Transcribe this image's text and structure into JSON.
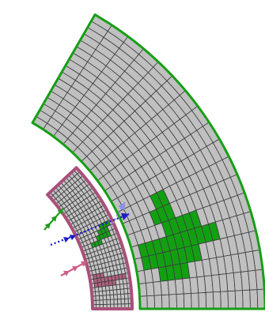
{
  "colors": {
    "background": "#ffffff",
    "outer_cell_fill": "#c0c0c0",
    "inner_cell_fill": "#c4c4c4",
    "grid_line": "#3c3c3c",
    "outer_border": "#169e16",
    "inner_border": "#a8507a",
    "highlight_green": "#12a012",
    "highlight_pink": "#b0607e",
    "arrow_green": "#1f9c1f",
    "arrow_blue": "#1a1acc",
    "arrow_lightblue": "#8f8fe8",
    "arrow_pink": "#cc5f8c"
  },
  "outer_region": {
    "label": "",
    "rings": 17,
    "sectors": 18,
    "highlighted_cells": [
      [
        5,
        7
      ],
      [
        6,
        7
      ],
      [
        4,
        6
      ],
      [
        5,
        6
      ],
      [
        6,
        6
      ],
      [
        5,
        5
      ],
      [
        6,
        5
      ],
      [
        7,
        5
      ],
      [
        8,
        5
      ],
      [
        9,
        5
      ],
      [
        1,
        4
      ],
      [
        2,
        4
      ],
      [
        3,
        4
      ],
      [
        4,
        4
      ],
      [
        5,
        4
      ],
      [
        6,
        4
      ],
      [
        7,
        4
      ],
      [
        8,
        4
      ],
      [
        9,
        4
      ],
      [
        10,
        4
      ],
      [
        11,
        4
      ],
      [
        1,
        3
      ],
      [
        2,
        3
      ],
      [
        3,
        3
      ],
      [
        4,
        3
      ],
      [
        5,
        3
      ],
      [
        6,
        3
      ],
      [
        7,
        3
      ],
      [
        8,
        3
      ],
      [
        3,
        2
      ],
      [
        4,
        2
      ],
      [
        5,
        2
      ],
      [
        6,
        2
      ]
    ]
  },
  "inner_region": {
    "label": "",
    "rings": 11,
    "sectors": 30,
    "highlighted_green_cells": [
      [
        7,
        17
      ],
      [
        8,
        17
      ],
      [
        9,
        17
      ],
      [
        6,
        16
      ],
      [
        7,
        16
      ],
      [
        8,
        16
      ],
      [
        5,
        15
      ],
      [
        6,
        15
      ],
      [
        7,
        15
      ],
      [
        8,
        15
      ],
      [
        3,
        14
      ],
      [
        4,
        14
      ],
      [
        5,
        14
      ]
    ],
    "highlighted_pink_cells": [
      [
        1,
        7
      ],
      [
        2,
        7
      ],
      [
        3,
        7
      ],
      [
        1,
        6
      ],
      [
        2,
        6
      ],
      [
        3,
        6
      ],
      [
        4,
        6
      ],
      [
        5,
        6
      ],
      [
        6,
        6
      ],
      [
        7,
        6
      ],
      [
        8,
        6
      ],
      [
        9,
        6
      ],
      [
        1,
        5
      ],
      [
        2,
        5
      ],
      [
        3,
        5
      ],
      [
        4,
        5
      ],
      [
        5,
        5
      ],
      [
        6,
        5
      ]
    ]
  },
  "arrows": [
    {
      "name": "green",
      "style": "chevron"
    },
    {
      "name": "blue",
      "style": "dotted"
    },
    {
      "name": "light-blue",
      "style": "dotted"
    },
    {
      "name": "pink",
      "style": "chevron"
    }
  ]
}
